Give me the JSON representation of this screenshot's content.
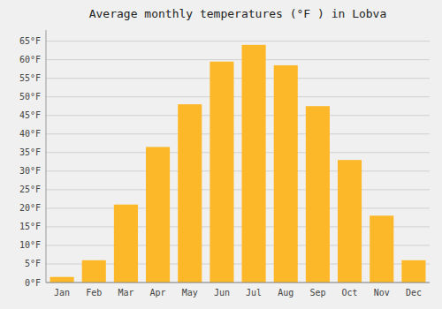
{
  "chart_data": {
    "type": "bar",
    "title": "Average monthly temperatures (°F ) in Lobva",
    "categories": [
      "Jan",
      "Feb",
      "Mar",
      "Apr",
      "May",
      "Jun",
      "Jul",
      "Aug",
      "Sep",
      "Oct",
      "Nov",
      "Dec"
    ],
    "values": [
      1.5,
      6,
      21,
      36.5,
      48,
      59.5,
      64,
      58.5,
      47.5,
      33,
      18,
      6
    ],
    "color": "#FDB82A",
    "ylim": [
      0,
      68
    ],
    "yticks": [
      {
        "value": 0,
        "label": "0°F"
      },
      {
        "value": 5,
        "label": "5°F"
      },
      {
        "value": 10,
        "label": "10°F"
      },
      {
        "value": 15,
        "label": "15°F"
      },
      {
        "value": 20,
        "label": "20°F"
      },
      {
        "value": 25,
        "label": "25°F"
      },
      {
        "value": 30,
        "label": "30°F"
      },
      {
        "value": 35,
        "label": "35°F"
      },
      {
        "value": 40,
        "label": "40°F"
      },
      {
        "value": 45,
        "label": "45°F"
      },
      {
        "value": 50,
        "label": "50°F"
      },
      {
        "value": 55,
        "label": "55°F"
      },
      {
        "value": 60,
        "label": "60°F"
      },
      {
        "value": 65,
        "label": "65°F"
      }
    ],
    "grid": true
  }
}
